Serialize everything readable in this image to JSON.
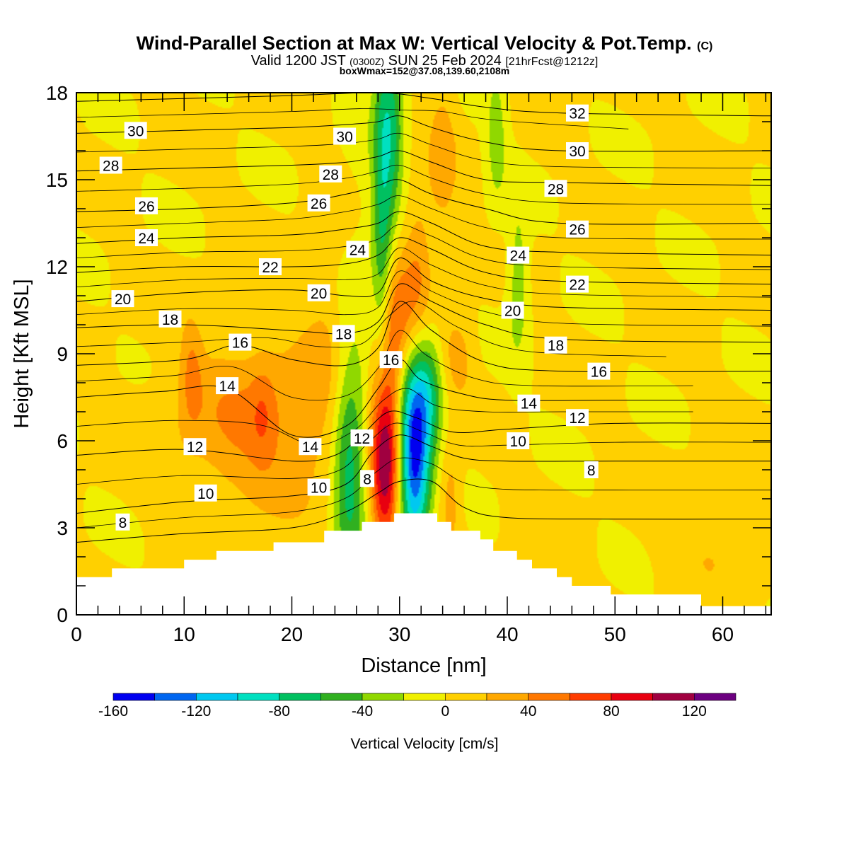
{
  "title": "Wind-Parallel Section at Max W: Vertical Velocity & Pot.Temp.",
  "title_mark": "(C)",
  "subtitle_main": "Valid 1200 JST",
  "subtitle_utc": "(0300Z)",
  "subtitle_date": "SUN 25 Feb 2024",
  "subtitle_fcst": "[21hrFcst@1212z]",
  "box_info": "boxWmax=152@37.08,139.60,2108m",
  "chart_data": {
    "type": "heatmap",
    "xlabel": "Distance [nm]",
    "ylabel": "Height [Kft MSL]",
    "xlim": [
      0,
      64.5
    ],
    "ylim": [
      0,
      18
    ],
    "x_ticks": [
      0,
      10,
      20,
      30,
      40,
      50,
      60
    ],
    "y_ticks": [
      0,
      3,
      6,
      9,
      12,
      15,
      18
    ],
    "x_tick_labels": [
      "0",
      "10",
      "20",
      "30",
      "40",
      "50",
      "60"
    ],
    "y_tick_labels": [
      "0",
      "3",
      "6",
      "9",
      "12",
      "15",
      "18"
    ],
    "colorbar": {
      "label": "Vertical Velocity [cm/s]",
      "min": -160,
      "max": 140,
      "step": 20,
      "tick_values": [
        -160,
        -120,
        -80,
        -40,
        0,
        40,
        80,
        120
      ],
      "tick_labels": [
        "-160",
        "-120",
        "-80",
        "-40",
        "0",
        "40",
        "80",
        "120"
      ],
      "colors": [
        "#0000f0",
        "#0066f0",
        "#00c8f0",
        "#00e0c0",
        "#00c060",
        "#30b020",
        "#90d800",
        "#f0f000",
        "#ffd000",
        "#ffa800",
        "#ff7800",
        "#ff3c00",
        "#e80010",
        "#a00040",
        "#6c0080"
      ]
    },
    "terrain_kft": [
      [
        0,
        1.3
      ],
      [
        3.3,
        1.3
      ],
      [
        3.3,
        1.6
      ],
      [
        10,
        1.6
      ],
      [
        10,
        1.9
      ],
      [
        13,
        1.9
      ],
      [
        13,
        2.2
      ],
      [
        18.3,
        2.2
      ],
      [
        18.3,
        2.5
      ],
      [
        23,
        2.5
      ],
      [
        23,
        2.9
      ],
      [
        26.5,
        2.9
      ],
      [
        26.5,
        3.2
      ],
      [
        29.5,
        3.2
      ],
      [
        29.5,
        3.5
      ],
      [
        33.5,
        3.5
      ],
      [
        33.5,
        3.2
      ],
      [
        34.8,
        3.2
      ],
      [
        34.8,
        2.9
      ],
      [
        37.5,
        2.9
      ],
      [
        37.5,
        2.6
      ],
      [
        38.7,
        2.6
      ],
      [
        38.7,
        2.2
      ],
      [
        40.9,
        2.2
      ],
      [
        40.9,
        1.9
      ],
      [
        42.3,
        1.9
      ],
      [
        42.3,
        1.6
      ],
      [
        44.6,
        1.6
      ],
      [
        44.6,
        1.3
      ],
      [
        46,
        1.3
      ],
      [
        46,
        1.0
      ],
      [
        49.6,
        1.0
      ],
      [
        49.6,
        0.7
      ],
      [
        58,
        0.7
      ],
      [
        58,
        0.3
      ],
      [
        64.5,
        0.3
      ]
    ],
    "w_blobs_cm_s": [
      {
        "x": 28.6,
        "z": 5.6,
        "sx": 0.9,
        "sz": 2.6,
        "w": 140
      },
      {
        "x": 29.8,
        "z": 10.3,
        "sx": 1.3,
        "sz": 1.8,
        "w": 55
      },
      {
        "x": 31.8,
        "z": 12.0,
        "sx": 0.9,
        "sz": 1.8,
        "w": 35
      },
      {
        "x": 34.7,
        "z": 4.0,
        "sx": 0.7,
        "sz": 1.4,
        "w": 30
      },
      {
        "x": 35.3,
        "z": 8.9,
        "sx": 1.1,
        "sz": 1.0,
        "w": 28
      },
      {
        "x": 16.8,
        "z": 6.5,
        "sx": 5.5,
        "sz": 2.0,
        "w": 40
      },
      {
        "x": 17.3,
        "z": 7.0,
        "sx": 0.8,
        "sz": 1.2,
        "w": 22
      },
      {
        "x": 10.7,
        "z": 8.3,
        "sx": 0.7,
        "sz": 1.3,
        "w": 32
      },
      {
        "x": 34.0,
        "z": 15.8,
        "sx": 0.9,
        "sz": 2.0,
        "w": 28
      },
      {
        "x": 23.5,
        "z": 10.0,
        "sx": 1.5,
        "sz": 3.5,
        "w": 16
      },
      {
        "x": 60.0,
        "z": 2.5,
        "sx": 3.5,
        "sz": 1.2,
        "w": 18
      },
      {
        "x": 31.4,
        "z": 5.5,
        "sx": 1.0,
        "sz": 2.3,
        "w": -150
      },
      {
        "x": 32.8,
        "z": 7.6,
        "sx": 1.0,
        "sz": 1.5,
        "w": -55
      },
      {
        "x": 25.3,
        "z": 5.2,
        "sx": 1.1,
        "sz": 2.8,
        "w": -75
      },
      {
        "x": 28.4,
        "z": 13.0,
        "sx": 0.65,
        "sz": 5.5,
        "w": -62
      },
      {
        "x": 29.4,
        "z": 17.0,
        "sx": 0.7,
        "sz": 2.5,
        "w": -50
      },
      {
        "x": 39.0,
        "z": 16.5,
        "sx": 0.7,
        "sz": 1.8,
        "w": -32
      },
      {
        "x": 41.0,
        "z": 11.5,
        "sx": 0.7,
        "sz": 1.8,
        "w": -38
      },
      {
        "x": 27.8,
        "z": 11.0,
        "sx": 2.4,
        "sz": 6.0,
        "w": -14
      }
    ],
    "theta_contours": [
      {
        "label": "8",
        "pts": [
          [
            0,
            2.5
          ],
          [
            10,
            2.8
          ],
          [
            20,
            3.0
          ],
          [
            25,
            3.55
          ],
          [
            28,
            4.2
          ],
          [
            30,
            4.6
          ],
          [
            33,
            4.6
          ],
          [
            36,
            3.7
          ],
          [
            40,
            3.35
          ],
          [
            50,
            3.3
          ],
          [
            64.5,
            3.3
          ]
        ],
        "label_at": [
          4.3,
          3.2
        ],
        "label2_at": [
          27.0,
          4.7
        ],
        "label3_at": [
          47.8,
          5.0
        ]
      },
      {
        "label": "10",
        "pts": [
          [
            0,
            3.5
          ],
          [
            10,
            3.9
          ],
          [
            20,
            4.1
          ],
          [
            25,
            4.5
          ],
          [
            27.5,
            5.6
          ],
          [
            30,
            6.2
          ],
          [
            33,
            5.8
          ],
          [
            36,
            5.4
          ],
          [
            40,
            5.3
          ],
          [
            50,
            5.3
          ],
          [
            64.5,
            5.3
          ]
        ],
        "label_at": [
          12,
          4.2
        ],
        "label2_at": [
          22.5,
          4.4
        ],
        "label3_at": [
          41,
          6.0
        ]
      },
      {
        "label": "12",
        "pts": [
          [
            0,
            5.5
          ],
          [
            10,
            5.7
          ],
          [
            20,
            5.3
          ],
          [
            24,
            5.5
          ],
          [
            26.5,
            6.2
          ],
          [
            29,
            7.0
          ],
          [
            31.5,
            6.8
          ],
          [
            35,
            6.3
          ],
          [
            40,
            6.4
          ],
          [
            50,
            6.6
          ],
          [
            64.5,
            6.6
          ]
        ],
        "label_at": [
          11,
          5.8
        ],
        "label2_at": [
          26.5,
          6.1
        ],
        "label3_at": [
          46.5,
          6.8
        ]
      },
      {
        "label": "14",
        "pts": [
          [
            0,
            7.5
          ],
          [
            8,
            7.7
          ],
          [
            14,
            7.8
          ],
          [
            20,
            6.2
          ],
          [
            25,
            6.5
          ],
          [
            28,
            7.8
          ],
          [
            30,
            8.8
          ],
          [
            32,
            8.1
          ],
          [
            36,
            7.6
          ],
          [
            40,
            7.4
          ],
          [
            50,
            7.4
          ],
          [
            64.5,
            7.4
          ]
        ],
        "label_at": [
          14,
          7.9
        ],
        "label2_at": [
          21.7,
          5.8
        ],
        "label3_at": [
          42,
          7.3
        ]
      },
      {
        "label": "16",
        "pts": [
          [
            0,
            8.6
          ],
          [
            10,
            8.8
          ],
          [
            15,
            9.3
          ],
          [
            20,
            8.8
          ],
          [
            25,
            8.6
          ],
          [
            28,
            9.2
          ],
          [
            30,
            10.8
          ],
          [
            33,
            9.8
          ],
          [
            38,
            8.7
          ],
          [
            45,
            8.4
          ],
          [
            64.5,
            8.4
          ]
        ],
        "label_at": [
          15.2,
          9.4
        ],
        "label2_at": [
          29.2,
          8.8
        ],
        "label3_at": [
          48.5,
          8.4
        ]
      },
      {
        "label": "18",
        "pts": [
          [
            0,
            9.9
          ],
          [
            10,
            10.0
          ],
          [
            20,
            9.8
          ],
          [
            25,
            9.7
          ],
          [
            28,
            10.1
          ],
          [
            30,
            11.4
          ],
          [
            33,
            10.8
          ],
          [
            38,
            10.0
          ],
          [
            45,
            9.5
          ],
          [
            64.5,
            9.4
          ]
        ],
        "label_at": [
          8.7,
          10.2
        ],
        "label2_at": [
          24.8,
          9.7
        ],
        "label3_at": [
          44.5,
          9.3
        ]
      },
      {
        "label": "20",
        "pts": [
          [
            0,
            10.8
          ],
          [
            10,
            11.1
          ],
          [
            20,
            11.2
          ],
          [
            25,
            11.0
          ],
          [
            28,
            11.1
          ],
          [
            30,
            12.3
          ],
          [
            33,
            11.5
          ],
          [
            38,
            10.9
          ],
          [
            45,
            10.6
          ],
          [
            64.5,
            10.5
          ]
        ],
        "label_at": [
          4.3,
          10.9
        ],
        "label2_at": [
          22.5,
          11.1
        ],
        "label3_at": [
          40.5,
          10.5
        ]
      },
      {
        "label": "22",
        "pts": [
          [
            0,
            11.8
          ],
          [
            10,
            12.0
          ],
          [
            20,
            12.0
          ],
          [
            25,
            12.1
          ],
          [
            28,
            12.4
          ],
          [
            30,
            13.0
          ],
          [
            33,
            12.6
          ],
          [
            38,
            11.8
          ],
          [
            45,
            11.5
          ],
          [
            64.5,
            11.4
          ]
        ],
        "label_at": [
          18,
          12.0
        ],
        "label2_at": [
          46.5,
          11.4
        ]
      },
      {
        "label": "24",
        "pts": [
          [
            0,
            12.8
          ],
          [
            10,
            13.0
          ],
          [
            20,
            13.1
          ],
          [
            25,
            13.3
          ],
          [
            28,
            13.5
          ],
          [
            30,
            13.9
          ],
          [
            33,
            13.5
          ],
          [
            38,
            12.7
          ],
          [
            45,
            12.5
          ],
          [
            64.5,
            12.4
          ]
        ],
        "label_at": [
          6.5,
          13.0
        ],
        "label2_at": [
          26.1,
          12.6
        ],
        "label3_at": [
          41,
          12.4
        ]
      },
      {
        "label": "26",
        "pts": [
          [
            0,
            13.9
          ],
          [
            10,
            14.0
          ],
          [
            20,
            14.2
          ],
          [
            25,
            14.5
          ],
          [
            28,
            14.8
          ],
          [
            30,
            15.0
          ],
          [
            33,
            14.5
          ],
          [
            38,
            14.0
          ],
          [
            45,
            13.5
          ],
          [
            64.5,
            13.5
          ]
        ],
        "label_at": [
          6.5,
          14.1
        ],
        "label2_at": [
          22.5,
          14.2
        ],
        "label3_at": [
          46.5,
          13.3
        ]
      },
      {
        "label": "28",
        "pts": [
          [
            0,
            15.3
          ],
          [
            10,
            15.4
          ],
          [
            20,
            15.5
          ],
          [
            25,
            15.6
          ],
          [
            28,
            15.8
          ],
          [
            30,
            16.0
          ],
          [
            33,
            15.6
          ],
          [
            38,
            15.0
          ],
          [
            45,
            14.9
          ],
          [
            64.5,
            14.8
          ]
        ],
        "label_at": [
          3.2,
          15.5
        ],
        "label2_at": [
          23.6,
          15.2
        ],
        "label3_at": [
          44.5,
          14.7
        ]
      },
      {
        "label": "30",
        "pts": [
          [
            0,
            16.6
          ],
          [
            10,
            16.7
          ],
          [
            20,
            16.8
          ],
          [
            25,
            16.9
          ],
          [
            28,
            17.0
          ],
          [
            30,
            17.2
          ],
          [
            33,
            16.8
          ],
          [
            38,
            16.3
          ],
          [
            45,
            16.0
          ],
          [
            64.5,
            16.0
          ]
        ],
        "label_at": [
          5.5,
          16.7
        ],
        "label2_at": [
          24.9,
          16.5
        ],
        "label3_at": [
          46.5,
          16.0
        ]
      },
      {
        "label": "32",
        "pts": [
          [
            0,
            17.7
          ],
          [
            10,
            17.8
          ],
          [
            20,
            17.9
          ],
          [
            28,
            18.0
          ],
          [
            33,
            17.8
          ],
          [
            38,
            17.5
          ],
          [
            45,
            17.3
          ],
          [
            64.5,
            17.2
          ]
        ],
        "label2_at": [
          46.5,
          17.3
        ]
      }
    ]
  }
}
